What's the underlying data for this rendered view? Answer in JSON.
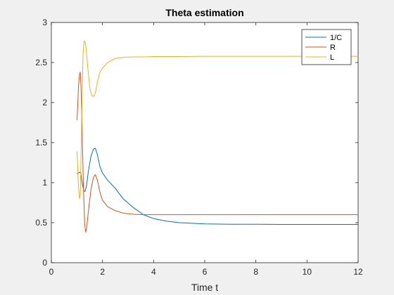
{
  "chart_data": {
    "type": "line",
    "title": "Theta estimation",
    "xlabel": "Time t",
    "ylabel": "",
    "xlim": [
      0,
      12
    ],
    "ylim": [
      0,
      3
    ],
    "xticks": [
      0,
      2,
      4,
      6,
      8,
      10,
      12
    ],
    "yticks": [
      0,
      0.5,
      1,
      1.5,
      2,
      2.5,
      3
    ],
    "xtick_labels": [
      "0",
      "2",
      "4",
      "6",
      "8",
      "10",
      "12"
    ],
    "ytick_labels": [
      "0",
      "0.5",
      "1",
      "1.5",
      "2",
      "2.5",
      "3"
    ],
    "grid": false,
    "legend_position": "top-right",
    "series": [
      {
        "name": "1/C",
        "color": "#0072BD",
        "x": [
          1.0,
          1.05,
          1.1,
          1.15,
          1.18,
          1.22,
          1.27,
          1.32,
          1.38,
          1.45,
          1.55,
          1.65,
          1.72,
          1.8,
          1.9,
          2.0,
          2.2,
          2.5,
          2.8,
          3.2,
          3.6,
          4.0,
          4.5,
          5.0,
          6.0,
          7.0,
          8.0,
          9.0,
          10.0,
          11.0,
          12.0
        ],
        "y": [
          1.11,
          1.12,
          1.13,
          1.12,
          1.05,
          0.97,
          0.9,
          0.89,
          0.97,
          1.15,
          1.33,
          1.42,
          1.43,
          1.35,
          1.2,
          1.12,
          1.03,
          0.93,
          0.8,
          0.69,
          0.6,
          0.55,
          0.52,
          0.5,
          0.485,
          0.48,
          0.48,
          0.478,
          0.478,
          0.478,
          0.478
        ]
      },
      {
        "name": "R",
        "color": "#D95319",
        "x": [
          1.0,
          1.03,
          1.06,
          1.1,
          1.13,
          1.16,
          1.2,
          1.25,
          1.3,
          1.34,
          1.38,
          1.45,
          1.55,
          1.65,
          1.72,
          1.8,
          1.9,
          2.0,
          2.2,
          2.5,
          2.8,
          3.2,
          3.6,
          4.0,
          5.0,
          6.0,
          8.0,
          10.0,
          12.0
        ],
        "y": [
          1.78,
          1.95,
          2.2,
          2.35,
          2.38,
          2.2,
          1.7,
          1.0,
          0.5,
          0.38,
          0.43,
          0.65,
          0.92,
          1.07,
          1.1,
          1.03,
          0.88,
          0.78,
          0.7,
          0.65,
          0.62,
          0.605,
          0.6,
          0.6,
          0.6,
          0.6,
          0.6,
          0.6,
          0.6
        ]
      },
      {
        "name": "L",
        "color": "#EDB120",
        "x": [
          1.0,
          1.03,
          1.06,
          1.1,
          1.13,
          1.16,
          1.2,
          1.24,
          1.28,
          1.33,
          1.38,
          1.45,
          1.52,
          1.6,
          1.67,
          1.72,
          1.8,
          1.9,
          2.0,
          2.2,
          2.5,
          2.8,
          3.2,
          3.6,
          4.0,
          5.0,
          6.0,
          8.0,
          10.0,
          12.0
        ],
        "y": [
          1.39,
          1.2,
          0.95,
          0.8,
          0.85,
          1.3,
          2.0,
          2.6,
          2.77,
          2.75,
          2.6,
          2.35,
          2.15,
          2.08,
          2.08,
          2.12,
          2.25,
          2.38,
          2.43,
          2.5,
          2.55,
          2.565,
          2.57,
          2.57,
          2.575,
          2.575,
          2.578,
          2.578,
          2.578,
          2.578
        ]
      }
    ]
  }
}
